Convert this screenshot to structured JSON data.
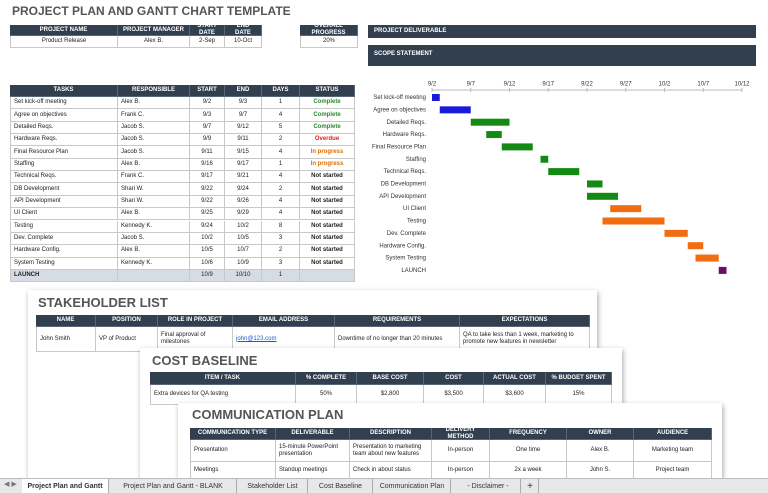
{
  "header": {
    "title": "PROJECT PLAN AND GANTT CHART TEMPLATE"
  },
  "project": {
    "headers": [
      "PROJECT NAME",
      "PROJECT MANAGER",
      "START DATE",
      "END DATE"
    ],
    "rows": [
      [
        "Product Release",
        "Alex B.",
        "2-Sep",
        "10-Oct"
      ]
    ]
  },
  "progress": {
    "headers": [
      "OVERALL PROGRESS"
    ],
    "rows": [
      [
        "20%"
      ]
    ]
  },
  "deliverable": {
    "label": "PROJECT DELIVERABLE",
    "scope": "SCOPE STATEMENT"
  },
  "tasks": {
    "headers": [
      "TASKS",
      "RESPONSIBLE",
      "START",
      "END",
      "DAYS",
      "STATUS"
    ],
    "rows": [
      [
        "Set kick-off meeting",
        "Alex B.",
        "9/2",
        "9/3",
        "1",
        "Complete"
      ],
      [
        "Agree on objectives",
        "Frank C.",
        "9/3",
        "9/7",
        "4",
        "Complete"
      ],
      [
        "Detailed Reqs.",
        "Jacob S.",
        "9/7",
        "9/12",
        "5",
        "Complete"
      ],
      [
        "Hardware Reqs.",
        "Jacob S.",
        "9/9",
        "9/11",
        "2",
        "Overdue"
      ],
      [
        "Final Resource Plan",
        "Jacob S.",
        "9/11",
        "9/15",
        "4",
        "In progress"
      ],
      [
        "Staffing",
        "Alex B.",
        "9/16",
        "9/17",
        "1",
        "In progress"
      ],
      [
        "Technical Reqs.",
        "Frank C.",
        "9/17",
        "9/21",
        "4",
        "Not started"
      ],
      [
        "DB Development",
        "Shari W.",
        "9/22",
        "9/24",
        "2",
        "Not started"
      ],
      [
        "API Development",
        "Shari W.",
        "9/22",
        "9/26",
        "4",
        "Not started"
      ],
      [
        "UI Client",
        "Alex B.",
        "9/25",
        "9/29",
        "4",
        "Not started"
      ],
      [
        "Testing",
        "Kennedy K.",
        "9/24",
        "10/2",
        "8",
        "Not started"
      ],
      [
        "Dev. Complete",
        "Jacob S.",
        "10/2",
        "10/5",
        "3",
        "Not started"
      ],
      [
        "Hardware Config.",
        "Alex B.",
        "10/5",
        "10/7",
        "2",
        "Not started"
      ],
      [
        "System Testing",
        "Kennedy K.",
        "10/6",
        "10/9",
        "3",
        "Not started"
      ],
      [
        "LAUNCH",
        null,
        "10/9",
        "10/10",
        "1",
        null
      ]
    ],
    "status_colors": [
      "#2e8b2e",
      "#2e8b2e",
      "#2e8b2e",
      "#e02020",
      "#e07000",
      "#e07000",
      "#222",
      "#222",
      "#222",
      "#222",
      "#222",
      "#222",
      "#222",
      "#222",
      "#222"
    ]
  },
  "gantt": {
    "ticks": [
      "9/2",
      "9/7",
      "9/12",
      "9/17",
      "9/22",
      "9/27",
      "10/2",
      "10/7",
      "10/12"
    ],
    "colors": [
      "#1a1adb",
      "#1a1adb",
      "#138a13",
      "#138a13",
      "#138a13",
      "#138a13",
      "#138a13",
      "#138a13",
      "#138a13",
      "#f26c10",
      "#f26c10",
      "#f26c10",
      "#f26c10",
      "#f26c10",
      "#6a0e6a"
    ]
  },
  "stakeholders": {
    "title": "STAKEHOLDER LIST",
    "headers": [
      "NAME",
      "POSITION",
      "ROLE IN PROJECT",
      "EMAIL ADDRESS",
      "REQUIREMENTS",
      "EXPECTATIONS"
    ],
    "rows": [
      [
        "John Smith",
        "VP of Product",
        "Final approval of milestones",
        "john@123.com",
        "Downtime of no longer than 20 minutes",
        "QA to take less than 1 week, marketing to promote new features in newsletter"
      ]
    ]
  },
  "cost": {
    "title": "COST BASELINE",
    "headers": [
      "ITEM / TASK",
      "% COMPLETE",
      "BASE COST",
      "COST",
      "ACTUAL COST",
      "% BUDGET SPENT"
    ],
    "rows": [
      [
        "Extra devices for QA testing",
        "50%",
        "$2,800",
        "$3,500",
        "$3,600",
        "15%"
      ]
    ]
  },
  "communication": {
    "title": "COMMUNICATION PLAN",
    "headers": [
      "COMMUNICATION TYPE",
      "DELIVERABLE",
      "DESCRIPTION",
      "DELIVERY METHOD",
      "FREQUENCY",
      "OWNER",
      "AUDIENCE"
    ],
    "rows": [
      [
        "Presentation",
        "15-minute PowerPoint presentation",
        "Presentation to marketing team about new features",
        "In-person",
        "One time",
        "Alex B.",
        "Marketing team"
      ],
      [
        "Meetings",
        "Standup meetings",
        "Check in about status",
        "In-person",
        "2x a week",
        "John S.",
        "Project team"
      ]
    ]
  },
  "tabs": [
    "Project Plan and Gantt",
    "Project Plan and Gantt - BLANK",
    "Stakeholder List",
    "Cost Baseline",
    "Communication Plan",
    "- Disclaimer -"
  ],
  "add_tab": "+"
}
